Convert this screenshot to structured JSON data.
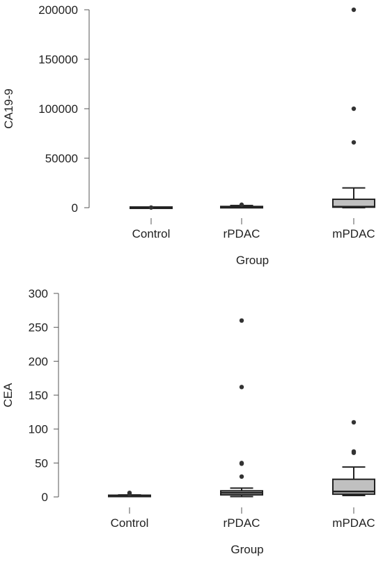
{
  "chart_data": [
    {
      "type": "box",
      "xlabel": "Group",
      "ylabel": "CA19-9",
      "categories": [
        "Control",
        "rPDAC",
        "mPDAC"
      ],
      "ylim": [
        0,
        200000
      ],
      "yticks": [
        0,
        50000,
        100000,
        150000,
        200000
      ],
      "ytick_labels": [
        "0",
        "50000",
        "100000",
        "150000",
        "200000"
      ],
      "boxes": [
        {
          "group": "Control",
          "whisker_low": 0,
          "q1": 0,
          "median": 5,
          "q3": 30,
          "whisker_high": 60,
          "outliers": [
            150
          ]
        },
        {
          "group": "rPDAC",
          "whisker_low": 0,
          "q1": 0,
          "median": 200,
          "q3": 1100,
          "whisker_high": 2200,
          "outliers": [
            3000
          ]
        },
        {
          "group": "mPDAC",
          "whisker_low": 0,
          "q1": 500,
          "median": 1000,
          "q3": 8500,
          "whisker_high": 20000,
          "outliers": [
            66000,
            100000,
            200000
          ]
        }
      ]
    },
    {
      "type": "box",
      "xlabel": "Group",
      "ylabel": "CEA",
      "categories": [
        "Control",
        "rPDAC",
        "mPDAC"
      ],
      "ylim": [
        0,
        300
      ],
      "yticks": [
        0,
        50,
        100,
        150,
        200,
        250,
        300
      ],
      "ytick_labels": [
        "0",
        "50",
        "100",
        "150",
        "200",
        "250",
        "300"
      ],
      "boxes": [
        {
          "group": "Control",
          "whisker_low": 0.5,
          "q1": 1.0,
          "median": 1.5,
          "q3": 2.0,
          "whisker_high": 3.0,
          "outliers": [
            4,
            6
          ]
        },
        {
          "group": "rPDAC",
          "whisker_low": 0.5,
          "q1": 3,
          "median": 6,
          "q3": 9,
          "whisker_high": 13,
          "outliers": [
            30,
            49,
            50,
            162,
            260
          ]
        },
        {
          "group": "mPDAC",
          "whisker_low": 2,
          "q1": 4,
          "median": 8,
          "q3": 26,
          "whisker_high": 44,
          "outliers": [
            65,
            67,
            110
          ]
        }
      ]
    }
  ],
  "colors": {
    "box_fill": "#c0c0c0",
    "box_stroke": "#222222",
    "axis": "#555555",
    "outlier": "#333333",
    "text": "#222222"
  }
}
